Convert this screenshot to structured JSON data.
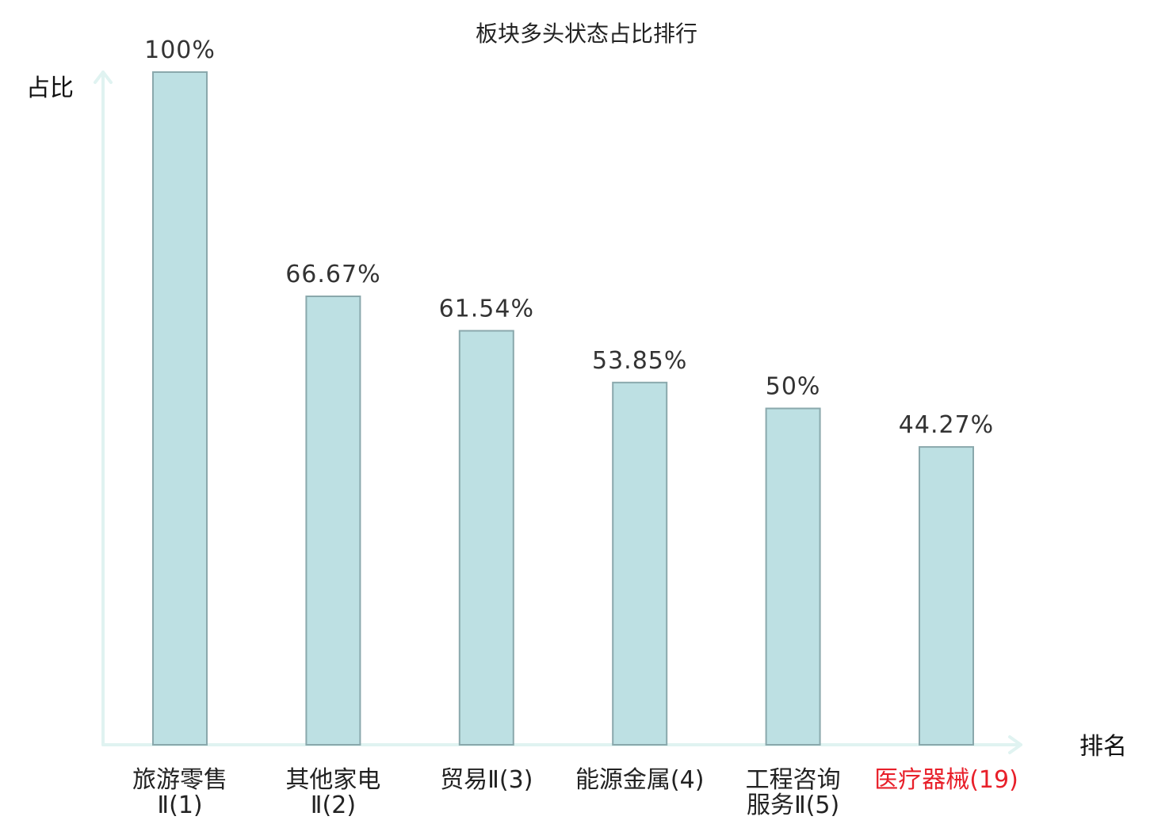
{
  "chart_data": {
    "type": "bar",
    "title": "板块多头状态占比排行",
    "ylabel": "占比",
    "xlabel": "排名",
    "ylim": [
      0,
      100
    ],
    "grid": false,
    "legend": "none",
    "categories": [
      {
        "name_lines": [
          "旅游零售",
          "Ⅱ(1)"
        ],
        "highlight": false
      },
      {
        "name_lines": [
          "其他家电",
          "Ⅱ(2)"
        ],
        "highlight": false
      },
      {
        "name_lines": [
          "贸易Ⅱ(3)"
        ],
        "highlight": false
      },
      {
        "name_lines": [
          "能源金属(4)"
        ],
        "highlight": false
      },
      {
        "name_lines": [
          "工程咨询",
          "服务Ⅱ(5)"
        ],
        "highlight": false
      },
      {
        "name_lines": [
          "医疗器械(19)"
        ],
        "highlight": true
      }
    ],
    "values": [
      100,
      66.67,
      61.54,
      53.85,
      50,
      44.27
    ],
    "value_labels": [
      "100%",
      "66.67%",
      "61.54%",
      "53.85%",
      "50%",
      "44.27%"
    ],
    "colors": {
      "bar_fill": "#bde0e3",
      "bar_stroke": "#8aa8ac",
      "axis": "#e0f3f1",
      "label_normal": "#222222",
      "label_highlight": "#e8202a"
    }
  }
}
